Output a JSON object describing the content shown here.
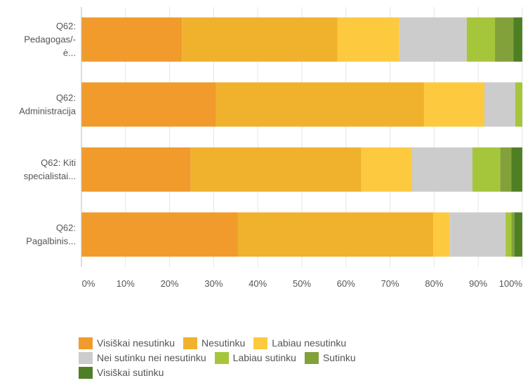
{
  "chart_data": {
    "type": "bar",
    "orientation": "horizontal",
    "stacked": true,
    "categories": [
      [
        "Q62:",
        "Pedagogas/-",
        "ė..."
      ],
      [
        "Q62:",
        "Administracija"
      ],
      [
        "Q62: Kiti",
        "specialistai..."
      ],
      [
        "Q62:",
        "Pagalbinis..."
      ]
    ],
    "series": [
      {
        "name": "Visiškai nesutinku",
        "color": "#F19B2C",
        "values": [
          22.8,
          30.5,
          24.8,
          35.5
        ]
      },
      {
        "name": "Nesutinku",
        "color": "#F0B12D",
        "values": [
          35.3,
          47.2,
          38.7,
          44.3
        ]
      },
      {
        "name": "Labiau nesutinku",
        "color": "#FDC93F",
        "values": [
          14.0,
          13.7,
          11.5,
          3.7
        ]
      },
      {
        "name": "Nei sutinku nei nesutinku",
        "color": "#CCCCCC",
        "values": [
          15.3,
          7.0,
          13.7,
          12.7
        ]
      },
      {
        "name": "Labiau sutinku",
        "color": "#A5C63B",
        "values": [
          6.4,
          1.6,
          6.3,
          1.3
        ]
      },
      {
        "name": "Sutinku",
        "color": "#82A13B",
        "values": [
          4.2,
          0.0,
          2.5,
          0.7
        ]
      },
      {
        "name": "Visiškai sutinku",
        "color": "#4F7F24",
        "values": [
          2.0,
          0.0,
          2.5,
          1.8
        ]
      }
    ],
    "xlim": [
      0,
      100
    ],
    "xticks": [
      "0%",
      "10%",
      "20%",
      "30%",
      "40%",
      "50%",
      "60%",
      "70%",
      "80%",
      "90%",
      "100%"
    ],
    "grid": true,
    "legend_position": "bottom"
  },
  "legend_rows": [
    [
      0,
      1,
      2
    ],
    [
      3,
      4,
      5
    ],
    [
      6
    ]
  ]
}
